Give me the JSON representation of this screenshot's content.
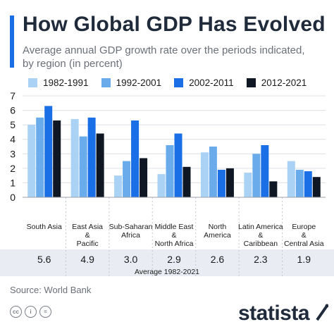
{
  "header": {
    "title": "How Global GDP Has Evolved",
    "subtitle": "Average annual GDP growth rate over the periods indicated, by region (in percent)",
    "accent_color": "#1a6ee6"
  },
  "chart_data": {
    "type": "bar",
    "categories": [
      [
        "South Asia"
      ],
      [
        "East Asia",
        "&",
        "Pacific"
      ],
      [
        "Sub-Saharan",
        "Africa"
      ],
      [
        "Middle East",
        "&",
        "North Africa"
      ],
      [
        "North",
        "America"
      ],
      [
        "Latin America",
        "&",
        "Caribbean"
      ],
      [
        "Europe",
        "&",
        "Central Asia"
      ]
    ],
    "series": [
      {
        "name": "1982-1991",
        "color": "#a9d2f5",
        "values": [
          5.0,
          5.4,
          1.5,
          1.6,
          3.1,
          1.7,
          2.5
        ]
      },
      {
        "name": "1992-2001",
        "color": "#6aaceb",
        "values": [
          5.5,
          4.2,
          2.5,
          3.6,
          3.5,
          3.0,
          1.9
        ]
      },
      {
        "name": "2002-2011",
        "color": "#1a6ee6",
        "values": [
          6.3,
          5.5,
          5.3,
          4.4,
          1.9,
          3.6,
          1.8
        ]
      },
      {
        "name": "2012-2021",
        "color": "#0f1724",
        "values": [
          5.3,
          4.4,
          2.7,
          2.1,
          2.0,
          1.1,
          1.4
        ]
      }
    ],
    "ylim": [
      0,
      7
    ],
    "yticks": [
      0,
      1,
      2,
      3,
      4,
      5,
      6,
      7
    ],
    "grid": true,
    "legend_position": "top",
    "averages": [
      "5.6",
      "4.9",
      "3.0",
      "2.9",
      "2.6",
      "2.3",
      "1.9"
    ],
    "averages_label": "Average 1982-2021"
  },
  "footer": {
    "source": "Source: World Bank",
    "cc_icons": [
      "cc-icon",
      "by-icon",
      "equals-icon"
    ],
    "cc_glyphs": [
      "cc",
      "i",
      "="
    ],
    "brand": "statista"
  }
}
